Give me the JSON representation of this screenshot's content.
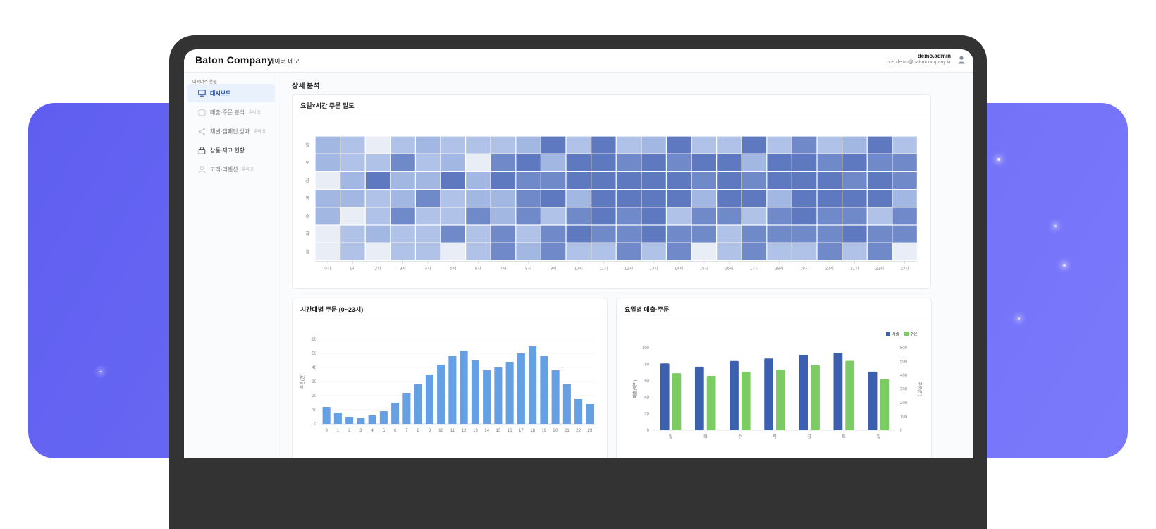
{
  "app": {
    "logo": "Baton Company",
    "subtitle": "데이터 데모",
    "user": {
      "name": "demo.admin",
      "email": "ops.demo@batoncompany.kr"
    }
  },
  "sidebar": {
    "section_label": "이커머스 운영",
    "items": [
      {
        "label": "대시보드",
        "tag": "",
        "icon": "monitor-icon",
        "active": true
      },
      {
        "label": "매출·주문 분석",
        "tag": "준비 중",
        "icon": "box-icon",
        "active": false
      },
      {
        "label": "채널·캠페인 성과",
        "tag": "준비 중",
        "icon": "share-icon",
        "active": false
      },
      {
        "label": "상품·재고 현황",
        "tag": "",
        "icon": "bag-icon",
        "active": false
      },
      {
        "label": "고객·리텐션",
        "tag": "준비 중",
        "icon": "user-icon",
        "active": false
      }
    ]
  },
  "main": {
    "title": "상세 분석"
  },
  "heatmap": {
    "title": "요일×시간 주문 밀도",
    "days": [
      "일",
      "토",
      "금",
      "목",
      "수",
      "화",
      "월"
    ],
    "hours": [
      "0시",
      "1시",
      "2시",
      "3시",
      "4시",
      "5시",
      "6시",
      "7시",
      "8시",
      "9시",
      "10시",
      "11시",
      "12시",
      "13시",
      "14시",
      "15시",
      "16시",
      "17시",
      "18시",
      "19시",
      "20시",
      "21시",
      "22시",
      "23시"
    ],
    "levels": [
      [
        3,
        2,
        0,
        2,
        3,
        2,
        2,
        2,
        3,
        5,
        2,
        5,
        2,
        3,
        5,
        2,
        2,
        5,
        2,
        4,
        2,
        3,
        5,
        2
      ],
      [
        3,
        2,
        2,
        4,
        2,
        3,
        0,
        4,
        5,
        3,
        5,
        5,
        4,
        5,
        4,
        5,
        5,
        3,
        5,
        5,
        4,
        5,
        4,
        4
      ],
      [
        0,
        3,
        5,
        3,
        3,
        5,
        3,
        5,
        4,
        4,
        5,
        5,
        5,
        5,
        5,
        4,
        5,
        4,
        5,
        5,
        5,
        4,
        5,
        4
      ],
      [
        3,
        3,
        2,
        3,
        4,
        2,
        3,
        3,
        4,
        5,
        3,
        5,
        5,
        5,
        5,
        3,
        5,
        5,
        3,
        5,
        5,
        5,
        5,
        3
      ],
      [
        3,
        0,
        2,
        4,
        2,
        2,
        4,
        3,
        4,
        2,
        4,
        5,
        4,
        5,
        2,
        4,
        4,
        2,
        4,
        5,
        4,
        4,
        2,
        4
      ],
      [
        0,
        2,
        3,
        2,
        2,
        4,
        2,
        4,
        2,
        4,
        5,
        4,
        4,
        5,
        4,
        4,
        2,
        4,
        4,
        4,
        4,
        5,
        4,
        4
      ],
      [
        0,
        2,
        0,
        2,
        2,
        0,
        2,
        4,
        3,
        4,
        2,
        2,
        4,
        2,
        4,
        0,
        2,
        4,
        2,
        2,
        4,
        2,
        4,
        0
      ]
    ],
    "palette": [
      "#e9edf6",
      "#c9d5ee",
      "#b0c2e7",
      "#a3b7e3",
      "#7089c9",
      "#5f79c0"
    ]
  },
  "hourly": {
    "title": "시간대별 주문 (0~23시)",
    "chart_data": {
      "type": "bar",
      "title": "시간대별 주문 (0~23시)",
      "ylabel": "주문(건)",
      "categories": [
        "0",
        "1",
        "2",
        "3",
        "4",
        "5",
        "6",
        "7",
        "8",
        "9",
        "10",
        "11",
        "12",
        "13",
        "14",
        "15",
        "16",
        "17",
        "18",
        "19",
        "20",
        "21",
        "22",
        "23"
      ],
      "values": [
        12,
        8,
        5,
        4,
        6,
        9,
        15,
        22,
        28,
        35,
        42,
        48,
        52,
        45,
        38,
        40,
        44,
        50,
        55,
        48,
        38,
        28,
        18,
        14
      ],
      "ylim": [
        0,
        60
      ],
      "yticks": [
        0,
        10,
        20,
        30,
        40,
        50,
        60
      ],
      "color": "#64a0e3"
    }
  },
  "weekday": {
    "title": "요일별 매출·주문",
    "chart_data": {
      "type": "bar",
      "title": "요일별 매출·주문",
      "ylabel": "매출(백만)",
      "y2label": "주문(건)",
      "categories": [
        "월",
        "화",
        "수",
        "목",
        "금",
        "토",
        "일"
      ],
      "series": [
        {
          "name": "매출",
          "values": [
            81,
            77,
            84,
            87,
            91,
            94,
            71
          ],
          "axis": "left",
          "color": "#3c5fb0"
        },
        {
          "name": "주문",
          "values": [
            415,
            395,
            424,
            441,
            474,
            505,
            371
          ],
          "axis": "right",
          "color": "#7ccc63"
        }
      ],
      "ylim": [
        0,
        100
      ],
      "yticks": [
        0,
        20,
        40,
        60,
        80,
        100
      ],
      "y2lim": [
        0,
        600
      ],
      "y2ticks": [
        0,
        100,
        200,
        300,
        400,
        500,
        600
      ],
      "legend": "top-right"
    }
  }
}
